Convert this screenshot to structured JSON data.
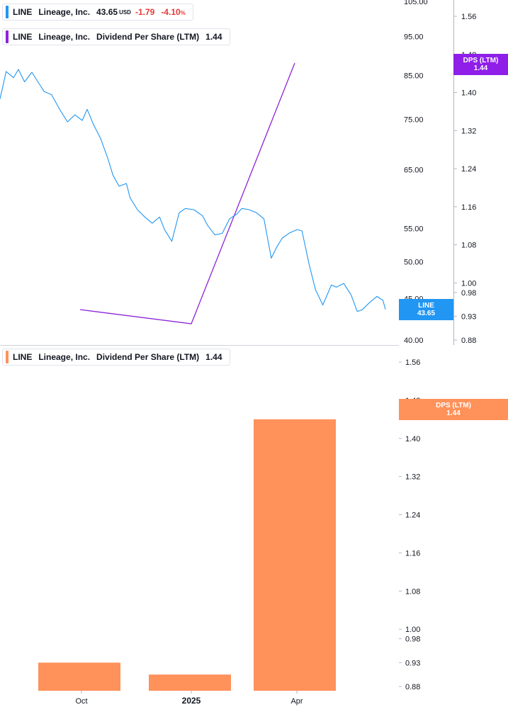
{
  "colors": {
    "price": "#2196f3",
    "dps_line": "#8e24d8",
    "dps_tag": "#8e1ee8",
    "bars": "#ff915a",
    "negative": "#e53935",
    "axis_text": "#131722",
    "divider": "#d1d4dc"
  },
  "legend_price": {
    "symbol": "LINE",
    "name": "Lineage, Inc.",
    "price": "43.65",
    "currency": "USD",
    "change": "-1.79",
    "change_pct": "-4.10",
    "pct_sign": "%"
  },
  "legend_dps_top": {
    "symbol": "LINE",
    "name": "Lineage, Inc.",
    "metric": "Dividend Per Share (LTM)",
    "value": "1.44"
  },
  "legend_dps_bottom": {
    "symbol": "LINE",
    "name": "Lineage, Inc.",
    "metric": "Dividend Per Share (LTM)",
    "value": "1.44"
  },
  "tags": {
    "line_symbol": "LINE",
    "line_value": "43.65",
    "dps_top_label": "DPS (LTM)",
    "dps_top_value": "1.44",
    "dps_bottom_label": "DPS (LTM)",
    "dps_bottom_value": "1.44"
  },
  "chart_data": [
    {
      "type": "line",
      "title": "LINE Lineage, Inc.",
      "scale": "log",
      "ylim": [
        40,
        105
      ],
      "y_ticks": [
        "105.00",
        "95.00",
        "85.00",
        "75.00",
        "65.00",
        "55.00",
        "50.00",
        "45.00",
        "40.00"
      ],
      "x_range": [
        "2024-07-25",
        "2025-06-04"
      ],
      "series": [
        {
          "name": "LINE",
          "x": [
            "2024-07-25",
            "2024-07-30",
            "2024-08-05",
            "2024-08-09",
            "2024-08-14",
            "2024-08-20",
            "2024-08-26",
            "2024-08-30",
            "2024-09-05",
            "2024-09-12",
            "2024-09-18",
            "2024-09-24",
            "2024-09-30",
            "2024-10-04",
            "2024-10-09",
            "2024-10-15",
            "2024-10-21",
            "2024-10-25",
            "2024-10-30",
            "2024-11-05",
            "2024-11-08",
            "2024-11-14",
            "2024-11-20",
            "2024-11-26",
            "2024-12-02",
            "2024-12-06",
            "2024-12-12",
            "2024-12-18",
            "2024-12-23",
            "2024-12-30",
            "2025-01-06",
            "2025-01-10",
            "2025-01-16",
            "2025-01-22",
            "2025-01-28",
            "2025-02-03",
            "2025-02-07",
            "2025-02-13",
            "2025-02-19",
            "2025-02-25",
            "2025-03-03",
            "2025-03-07",
            "2025-03-12",
            "2025-03-18",
            "2025-03-24",
            "2025-03-28",
            "2025-04-03",
            "2025-04-08",
            "2025-04-14",
            "2025-04-21",
            "2025-04-25",
            "2025-05-01",
            "2025-05-07",
            "2025-05-12",
            "2025-05-16",
            "2025-05-22",
            "2025-05-28",
            "2025-06-02",
            "2025-06-04"
          ],
          "values": [
            79.5,
            86.0,
            84.5,
            86.5,
            83.5,
            85.8,
            83.0,
            81.2,
            80.5,
            77.0,
            74.5,
            76.0,
            74.8,
            77.2,
            74.0,
            71.0,
            67.0,
            64.0,
            62.0,
            62.5,
            60.0,
            58.0,
            56.8,
            55.8,
            56.8,
            54.8,
            53.0,
            57.5,
            58.2,
            58.0,
            57.0,
            55.5,
            54.0,
            54.2,
            56.5,
            57.3,
            58.2,
            58.0,
            57.5,
            56.5,
            50.5,
            52.0,
            53.5,
            54.3,
            54.8,
            54.6,
            49.5,
            46.2,
            44.2,
            46.8,
            46.5,
            47.0,
            45.5,
            43.4,
            43.6,
            44.5,
            45.3,
            44.8,
            43.65
          ]
        }
      ]
    },
    {
      "type": "line",
      "title": "LINE Lineage, Inc. Dividend Per Share (LTM)",
      "ylim": [
        0.88,
        1.6
      ],
      "y_ticks": [
        "1.56",
        "1.48",
        "1.40",
        "1.32",
        "1.24",
        "1.16",
        "1.08",
        "1.00",
        "0.98",
        "0.93",
        "0.88"
      ],
      "series": [
        {
          "name": "Dividend Per Share (LTM)",
          "x": [
            "2024-10-01",
            "2024-12-31",
            "2025-03-31"
          ],
          "values": [
            0.925,
            0.905,
            1.44
          ]
        }
      ]
    },
    {
      "type": "bar",
      "title": "LINE Lineage, Inc. Dividend Per Share (LTM)",
      "ylim": [
        0.88,
        1.6
      ],
      "y_ticks": [
        "1.56",
        "1.48",
        "1.40",
        "1.32",
        "1.24",
        "1.16",
        "1.08",
        "1.00",
        "0.98",
        "0.93",
        "0.88"
      ],
      "x_ticks": [
        "Oct",
        "2025",
        "Apr"
      ],
      "categories": [
        "2024-10-01",
        "2024-12-31",
        "2025-03-31"
      ],
      "values": [
        0.93,
        0.905,
        1.44
      ]
    }
  ]
}
